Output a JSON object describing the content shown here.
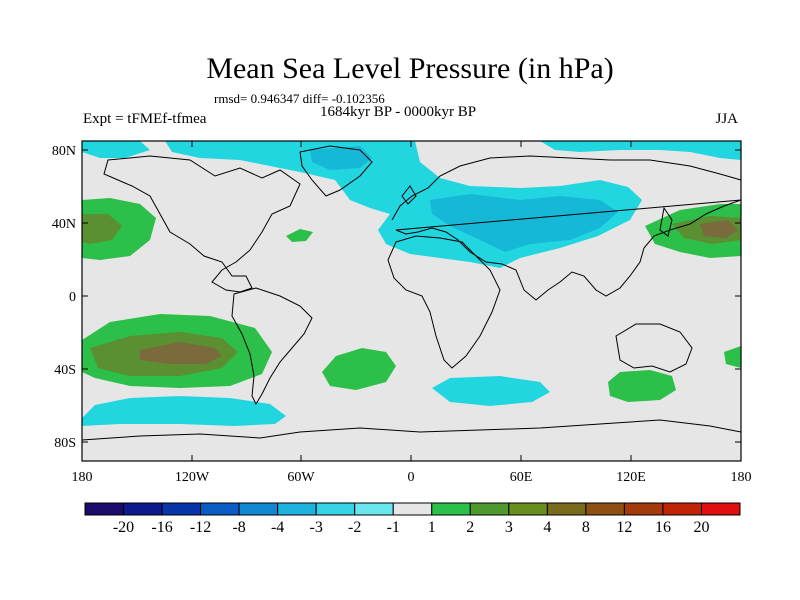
{
  "title": "Mean Sea Level Pressure (in hPa)",
  "stats": "rmsd= 0.946347 diff= -0.102356",
  "experiment": "Expt = tFMEf-tfmea",
  "period": "1684kyr BP - 0000kyr BP",
  "season": "JJA",
  "lat_ticks": [
    "80N",
    "40N",
    "0",
    "40S",
    "80S"
  ],
  "lon_ticks": [
    "180",
    "120W",
    "60W",
    "0",
    "60E",
    "120E",
    "180"
  ],
  "colorbar": {
    "colors": [
      "#1b0b6b",
      "#0d1a8c",
      "#0a35a8",
      "#0b5cc4",
      "#1386d4",
      "#1fb2df",
      "#36d2e6",
      "#6ae6ee",
      "#e6e6e6",
      "#2cbf4a",
      "#4f9a2e",
      "#6b8f1e",
      "#7a6a1c",
      "#8e4f12",
      "#a43a0c",
      "#c02406",
      "#e00e0e"
    ],
    "labels": [
      "-20",
      "-16",
      "-12",
      "-8",
      "-4",
      "-3",
      "-2",
      "-1",
      "1",
      "2",
      "3",
      "4",
      "8",
      "12",
      "16",
      "20"
    ]
  },
  "field_colors": {
    "background": "#e6e6e6",
    "neg1": "#22d6e0",
    "neg2": "#16b8d8",
    "pos1": "#2cbf4a",
    "pos2": "#5a8f32",
    "pos3": "#7a6a3c"
  }
}
